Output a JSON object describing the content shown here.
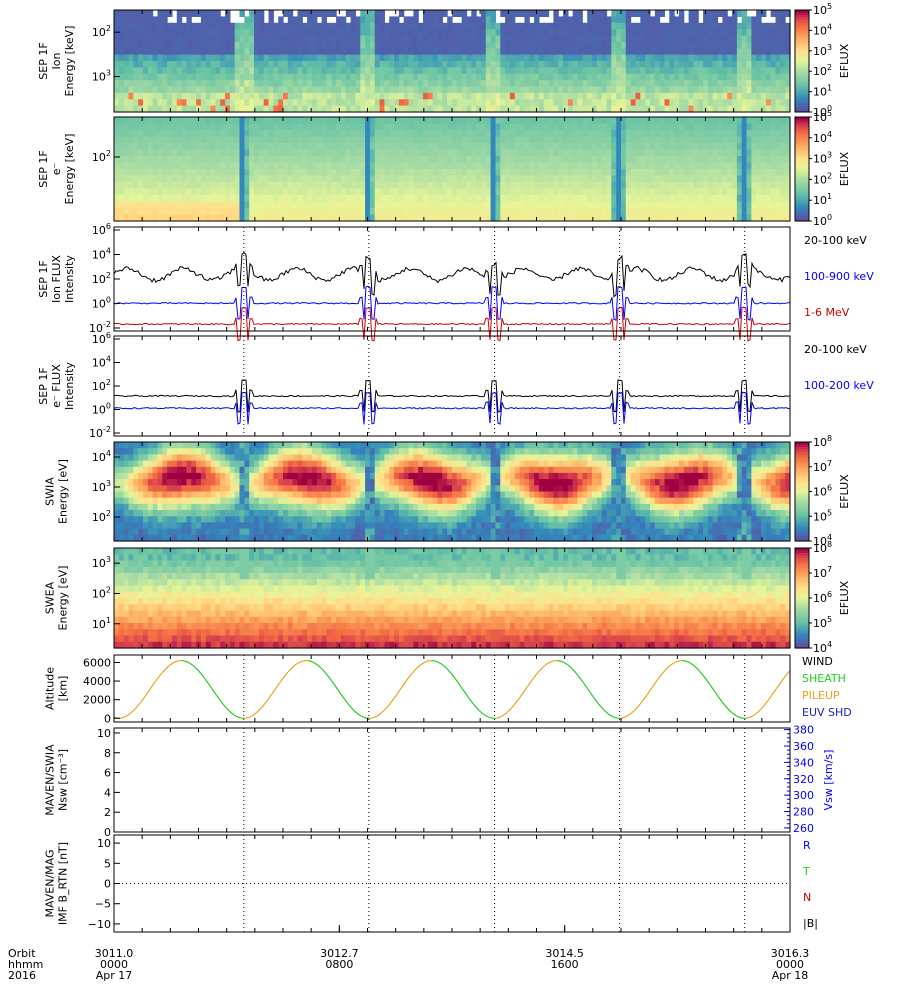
{
  "colors": {
    "black": "#000000",
    "blue": "#0000ff",
    "red": "#cc0000",
    "green": "#22cc22",
    "orange": "#f0a020",
    "darkblue": "#2020c0"
  },
  "chart_data": [
    {
      "id": "sep-ion-spec",
      "type": "heatmap",
      "ylabel": [
        "SEP 1F",
        "Ion",
        "Energy [keV]"
      ],
      "yticks": [
        {
          "label": "10",
          "sup": "2"
        },
        {
          "label": "10",
          "sup": "3"
        }
      ],
      "colorbar_label": "EFLUX",
      "colorbar_ticks": [
        {
          "label": "10",
          "sup": "0"
        },
        {
          "label": "10",
          "sup": "1"
        },
        {
          "label": "10",
          "sup": "2"
        },
        {
          "label": "10",
          "sup": "3"
        },
        {
          "label": "10",
          "sup": "4"
        },
        {
          "label": "10",
          "sup": "5"
        }
      ],
      "colormap": "spectral"
    },
    {
      "id": "sep-e-spec",
      "type": "heatmap",
      "ylabel": [
        "SEP 1F",
        "e⁻",
        "Energy [keV]"
      ],
      "yticks": [
        {
          "label": "10",
          "sup": "2"
        }
      ],
      "colorbar_label": "EFLUX",
      "colorbar_ticks": [
        {
          "label": "10",
          "sup": "0"
        },
        {
          "label": "10",
          "sup": "1"
        },
        {
          "label": "10",
          "sup": "2"
        },
        {
          "label": "10",
          "sup": "3"
        },
        {
          "label": "10",
          "sup": "4"
        },
        {
          "label": "10",
          "sup": "5"
        }
      ],
      "colormap": "spectral"
    },
    {
      "id": "sep-ion-flux",
      "type": "line",
      "ylabel": [
        "SEP 1F",
        "Ion FLUX",
        "Intensity"
      ],
      "yticks": [
        {
          "label": "10",
          "sup": "6"
        },
        {
          "label": "10",
          "sup": "4"
        },
        {
          "label": "10",
          "sup": "2"
        },
        {
          "label": "10",
          "sup": "0"
        },
        {
          "label": "10",
          "sup": "-2"
        }
      ],
      "ylim_log10": [
        -3,
        6
      ],
      "series": [
        {
          "name": "20-100 keV",
          "color": "#000000",
          "base_log10": 1.9
        },
        {
          "name": "100-900 keV",
          "color": "#0000ff",
          "base_log10": -0.6
        },
        {
          "name": "1-6 MeV",
          "color": "#cc0000",
          "base_log10": -2.4
        }
      ]
    },
    {
      "id": "sep-e-flux",
      "type": "line",
      "ylabel": [
        "SEP 1F",
        "e⁻ FLUX",
        "Intensity"
      ],
      "yticks": [
        {
          "label": "10",
          "sup": "6"
        },
        {
          "label": "10",
          "sup": "4"
        },
        {
          "label": "10",
          "sup": "2"
        },
        {
          "label": "10",
          "sup": "0"
        },
        {
          "label": "10",
          "sup": "-2"
        }
      ],
      "ylim_log10": [
        -3,
        6
      ],
      "series": [
        {
          "name": "20-100 keV",
          "color": "#000000",
          "base_log10": 0.6
        },
        {
          "name": "100-200 keV",
          "color": "#0000ff",
          "base_log10": -0.5
        }
      ]
    },
    {
      "id": "swia-spec",
      "type": "heatmap",
      "ylabel": [
        "SWIA",
        "Energy [eV]"
      ],
      "yticks": [
        {
          "label": "10",
          "sup": "4"
        },
        {
          "label": "10",
          "sup": "3"
        },
        {
          "label": "10",
          "sup": "2"
        }
      ],
      "colorbar_label": "EFLUX",
      "colorbar_ticks": [
        {
          "label": "10",
          "sup": "4"
        },
        {
          "label": "10",
          "sup": "5"
        },
        {
          "label": "10",
          "sup": "6"
        },
        {
          "label": "10",
          "sup": "7"
        },
        {
          "label": "10",
          "sup": "8"
        }
      ],
      "colormap": "spectral"
    },
    {
      "id": "swea-spec",
      "type": "heatmap",
      "ylabel": [
        "SWEA",
        "Energy [eV]"
      ],
      "yticks": [
        {
          "label": "10",
          "sup": "3"
        },
        {
          "label": "10",
          "sup": "2"
        },
        {
          "label": "10",
          "sup": "1"
        }
      ],
      "colorbar_label": "EFLUX",
      "colorbar_ticks": [
        {
          "label": "10",
          "sup": "4"
        },
        {
          "label": "10",
          "sup": "5"
        },
        {
          "label": "10",
          "sup": "6"
        },
        {
          "label": "10",
          "sup": "7"
        },
        {
          "label": "10",
          "sup": "8"
        }
      ],
      "colormap": "spectral"
    },
    {
      "id": "altitude",
      "type": "line",
      "ylabel": [
        "Altitude",
        "[km]"
      ],
      "yticks": [
        {
          "label": "6000",
          "value": 6000
        },
        {
          "label": "4000",
          "value": 4000
        },
        {
          "label": "2000",
          "value": 2000
        },
        {
          "label": "0",
          "value": 0
        }
      ],
      "ylim": [
        -400,
        6800
      ],
      "apoapsis_km": 6200,
      "legend": [
        {
          "name": "WIND",
          "color": "#000000"
        },
        {
          "name": "SHEATH",
          "color": "#22cc22"
        },
        {
          "name": "PILEUP",
          "color": "#f0a020"
        },
        {
          "name": "EUV SHD",
          "color": "#2020c0"
        }
      ]
    },
    {
      "id": "swia-moments",
      "type": "line",
      "ylabel": [
        "MAVEN/SWIA",
        "Nsw [cm⁻³]"
      ],
      "yticks": [
        {
          "label": "10",
          "value": 10
        },
        {
          "label": "8",
          "value": 8
        },
        {
          "label": "6",
          "value": 6
        },
        {
          "label": "4",
          "value": 4
        },
        {
          "label": "2",
          "value": 2
        },
        {
          "label": "0",
          "value": 0
        }
      ],
      "ylim": [
        0,
        10.5
      ],
      "y2label": "Vsw [km/s]",
      "y2ticks": [
        {
          "label": "380",
          "value": 380
        },
        {
          "label": "360",
          "value": 360
        },
        {
          "label": "340",
          "value": 340
        },
        {
          "label": "320",
          "value": 320
        },
        {
          "label": "300",
          "value": 300
        },
        {
          "label": "280",
          "value": 280
        },
        {
          "label": "260",
          "value": 260
        }
      ],
      "y2lim": [
        255,
        382
      ]
    },
    {
      "id": "imf",
      "type": "line",
      "ylabel": [
        "MAVEN/MAG",
        "IMF B_RTN [nT]"
      ],
      "yticks": [
        {
          "label": "10",
          "value": 10
        },
        {
          "label": "5",
          "value": 5
        },
        {
          "label": "0",
          "value": 0
        },
        {
          "label": "−5",
          "value": -5
        },
        {
          "label": "−10",
          "value": -10
        }
      ],
      "ylim": [
        -12,
        12
      ],
      "legend": [
        {
          "name": "R",
          "color": "#0000ff"
        },
        {
          "name": "T",
          "color": "#22cc22"
        },
        {
          "name": "N",
          "color": "#cc0000"
        },
        {
          "name": "|B|",
          "color": "#000000"
        }
      ]
    }
  ],
  "x_axis": {
    "row_labels": [
      "Orbit",
      "hhmm",
      "2016"
    ],
    "ticks": [
      {
        "orbit": "3011.0",
        "hhmm": "0000",
        "date": "Apr 17"
      },
      {
        "orbit": "3012.7",
        "hhmm": "0800",
        "date": ""
      },
      {
        "orbit": "3014.5",
        "hhmm": "1600",
        "date": ""
      },
      {
        "orbit": "3016.3",
        "hhmm": "0000",
        "date": "Apr 18"
      }
    ],
    "periapsis_fractions": [
      0.192,
      0.377,
      0.563,
      0.748,
      0.933
    ],
    "orbit_period_fraction": 0.1852
  }
}
